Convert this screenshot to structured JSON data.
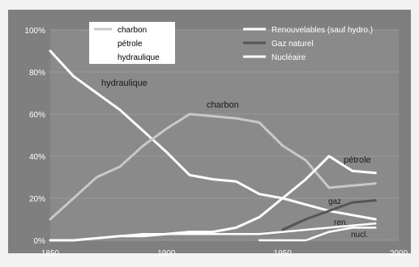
{
  "chart_data": {
    "type": "line",
    "xlim": [
      1850,
      2000
    ],
    "ylim": [
      0,
      100
    ],
    "x_ticks": [
      "1850",
      "1900",
      "1950",
      "2000"
    ],
    "y_ticks": [
      "0%",
      "20%",
      "40%",
      "60%",
      "80%",
      "100%"
    ],
    "grid": "horizontal",
    "legend_left": [
      "charbon",
      "pétrole",
      "hydraulique"
    ],
    "legend_right": [
      "Renouvelables (sauf hydro.)",
      "Gaz naturel",
      "Nucléaire"
    ],
    "annotations": {
      "hydraulique": "hydraulique",
      "charbon": "charbon",
      "petrole": "pétrole",
      "gaz": "gaz",
      "ren": "ren.",
      "nucl": "nucl."
    },
    "colors": {
      "background": "#808080",
      "plot": "#888888",
      "charbon": "#c8c8c8",
      "white_series": "#ffffff",
      "gaz": "#555555"
    },
    "series": [
      {
        "name": "hydraulique",
        "x": [
          1850,
          1860,
          1870,
          1880,
          1890,
          1900,
          1910,
          1920,
          1930,
          1940,
          1950,
          1960,
          1970,
          1980,
          1990
        ],
        "values": [
          90,
          78,
          70,
          62,
          52,
          42,
          31,
          29,
          28,
          22,
          20,
          17,
          14,
          12,
          10
        ]
      },
      {
        "name": "charbon",
        "x": [
          1850,
          1860,
          1870,
          1880,
          1890,
          1900,
          1910,
          1920,
          1930,
          1940,
          1950,
          1960,
          1970,
          1980,
          1990
        ],
        "values": [
          10,
          20,
          30,
          35,
          45,
          53,
          60,
          59,
          58,
          56,
          45,
          38,
          25,
          26,
          27
        ]
      },
      {
        "name": "pétrole",
        "x": [
          1850,
          1860,
          1870,
          1880,
          1890,
          1900,
          1910,
          1920,
          1930,
          1940,
          1950,
          1960,
          1970,
          1980,
          1990
        ],
        "values": [
          0,
          0,
          1,
          2,
          2,
          3,
          4,
          4,
          6,
          11,
          20,
          29,
          40,
          33,
          32
        ]
      },
      {
        "name": "Renouvelables (sauf hydro.)",
        "x": [
          1850,
          1860,
          1870,
          1880,
          1890,
          1900,
          1910,
          1920,
          1930,
          1940,
          1950,
          1960,
          1970,
          1980,
          1990
        ],
        "values": [
          0,
          0,
          1,
          2,
          3,
          3,
          3,
          3,
          3,
          3,
          4,
          5,
          6,
          7,
          8
        ]
      },
      {
        "name": "Gaz naturel",
        "x": [
          1950,
          1960,
          1970,
          1980,
          1990
        ],
        "values": [
          5,
          10,
          14,
          18,
          19
        ]
      },
      {
        "name": "Nucléaire",
        "x": [
          1940,
          1950,
          1960,
          1970,
          1980,
          1990
        ],
        "values": [
          0,
          0,
          0,
          4,
          6,
          6
        ]
      }
    ]
  }
}
